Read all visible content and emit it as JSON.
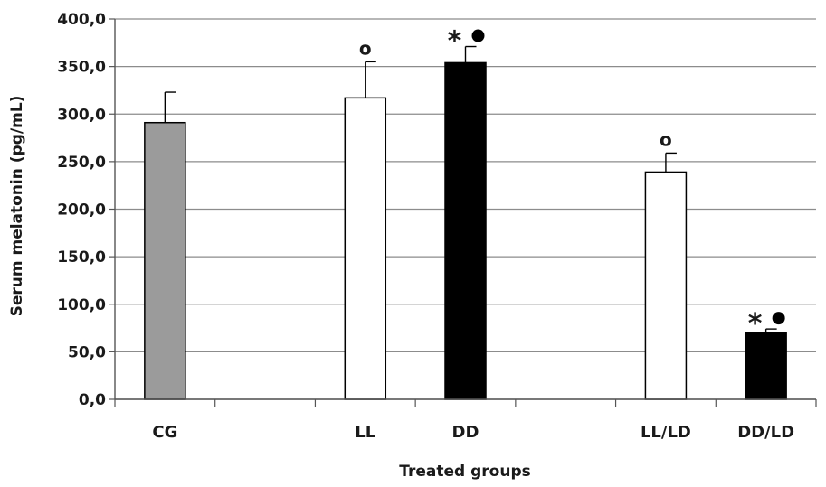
{
  "chart_data": {
    "type": "bar",
    "title": "",
    "xlabel": "Treated groups",
    "ylabel": "Serum melatonin (pg/mL)",
    "ylim": [
      0,
      400
    ],
    "yticks": [
      "0,0",
      "50,0",
      "100,0",
      "150,0",
      "200,0",
      "250,0",
      "300,0",
      "350,0",
      "400,0"
    ],
    "ytick_values": [
      0,
      50,
      100,
      150,
      200,
      250,
      300,
      350,
      400
    ],
    "grid": true,
    "categories": [
      "CG",
      "",
      "LL",
      "DD",
      "",
      "LL/LD",
      "DD/LD"
    ],
    "values": [
      291,
      null,
      317,
      354,
      null,
      239,
      70
    ],
    "errors": [
      32,
      null,
      38,
      17,
      null,
      20,
      4
    ],
    "bar_colors": [
      "#9b9b9b",
      null,
      "#ffffff",
      "#000000",
      null,
      "#ffffff",
      "#000000"
    ],
    "annotations": [
      {
        "category": "LL",
        "symbols": [
          {
            "kind": "text",
            "text": "o"
          }
        ]
      },
      {
        "category": "DD",
        "symbols": [
          {
            "kind": "text",
            "text": "*"
          },
          {
            "kind": "dot"
          }
        ]
      },
      {
        "category": "LL/LD",
        "symbols": [
          {
            "kind": "text",
            "text": "o"
          }
        ]
      },
      {
        "category": "DD/LD",
        "symbols": [
          {
            "kind": "text",
            "text": "*"
          },
          {
            "kind": "dot"
          }
        ]
      }
    ]
  }
}
